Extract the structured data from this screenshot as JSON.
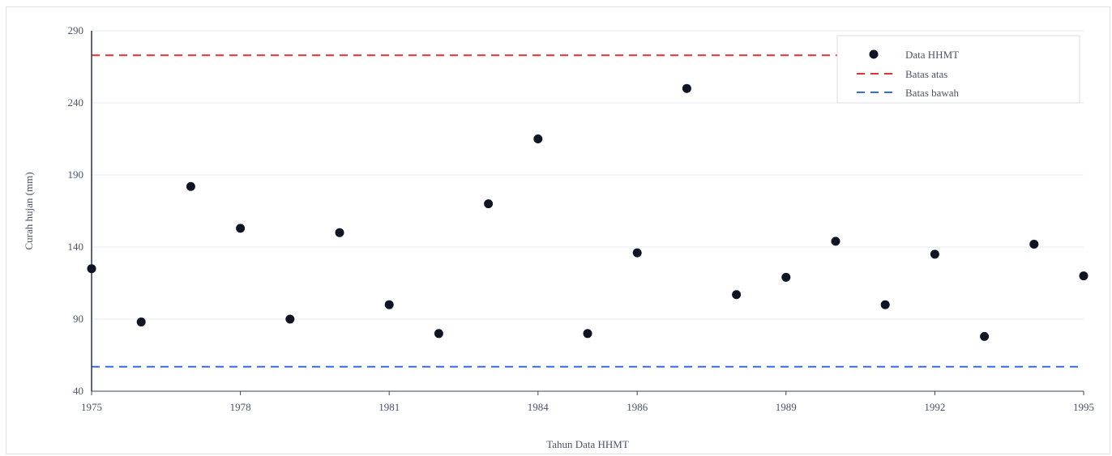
{
  "chart_data": {
    "type": "scatter",
    "title": "",
    "xlabel": "Tahun Data HHMT",
    "ylabel": "Curah hujan (mm)",
    "ylim": [
      40,
      290
    ],
    "yticks": [
      40,
      90,
      140,
      190,
      240,
      290
    ],
    "xticks": [
      "1975",
      "1978",
      "1981",
      "1984",
      "1986",
      "1989",
      "1992",
      "1995"
    ],
    "grid": "horizontal",
    "legend_position": "top-right",
    "series": [
      {
        "name": "Data HHMT",
        "color": "#0f1524",
        "x": [
          "1975",
          "1976",
          "1977",
          "1978",
          "1979",
          "1980",
          "1981",
          "1982",
          "1983",
          "1984",
          "1985",
          "1986",
          "1987",
          "1988",
          "1989",
          "1990",
          "1991",
          "1992",
          "1993",
          "1994",
          "1995"
        ],
        "y": [
          125,
          88,
          182,
          153,
          90,
          150,
          100,
          80,
          170,
          215,
          80,
          136,
          250,
          107,
          119,
          144,
          100,
          135,
          78,
          142,
          120
        ]
      },
      {
        "name": "Batas atas",
        "color": "#e03131",
        "dash": "dashed",
        "y": 273
      },
      {
        "name": "Batas bawah",
        "color": "#2f6fe0",
        "dash": "dashed",
        "y": 57
      }
    ]
  }
}
